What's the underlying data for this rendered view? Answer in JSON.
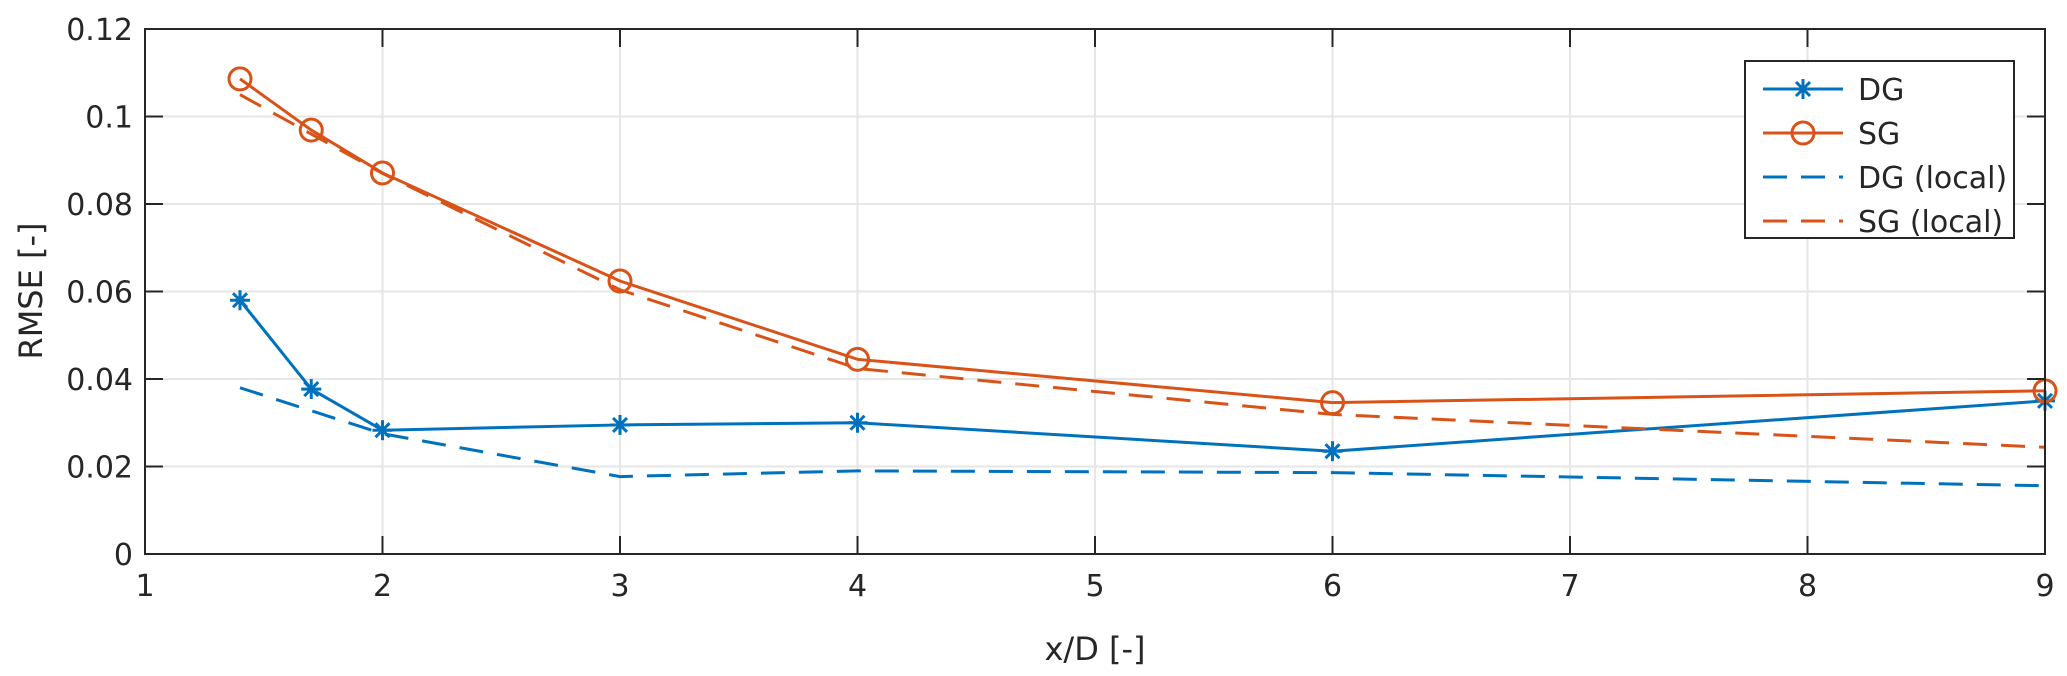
{
  "chart_data": {
    "type": "line",
    "title": "",
    "xlabel": "x/D [-]",
    "ylabel": "RMSE [-]",
    "xlim": [
      1,
      9
    ],
    "ylim": [
      0,
      0.12
    ],
    "xticks": [
      "1",
      "2",
      "3",
      "4",
      "5",
      "6",
      "7",
      "8",
      "9"
    ],
    "yticks": [
      "0",
      "0.02",
      "0.04",
      "0.06",
      "0.08",
      "0.1",
      "0.12"
    ],
    "grid": true,
    "legend_position": "top-right",
    "series": [
      {
        "name": "DG",
        "color": "#0072BD",
        "style": "solid",
        "marker": "asterisk",
        "x": [
          1.4,
          1.7,
          2,
          3,
          4,
          6,
          9
        ],
        "y": [
          0.058,
          0.0377,
          0.0283,
          0.0295,
          0.03,
          0.0235,
          0.035
        ]
      },
      {
        "name": "SG",
        "color": "#D95319",
        "style": "solid",
        "marker": "circle",
        "x": [
          1.4,
          1.7,
          2,
          3,
          4,
          6,
          9
        ],
        "y": [
          0.1086,
          0.0969,
          0.0871,
          0.0624,
          0.0445,
          0.0346,
          0.0373
        ]
      },
      {
        "name": "DG (local)",
        "color": "#0072BD",
        "style": "dashed",
        "marker": "none",
        "x": [
          1.4,
          2,
          3,
          4,
          6,
          9
        ],
        "y": [
          0.038,
          0.0275,
          0.0177,
          0.019,
          0.0186,
          0.0156
        ]
      },
      {
        "name": "SG (local)",
        "color": "#D95319",
        "style": "dashed",
        "marker": "none",
        "x": [
          1.4,
          1.7,
          2,
          3,
          4,
          6,
          9
        ],
        "y": [
          0.105,
          0.096,
          0.087,
          0.0604,
          0.0424,
          0.0319,
          0.0244
        ]
      }
    ]
  }
}
